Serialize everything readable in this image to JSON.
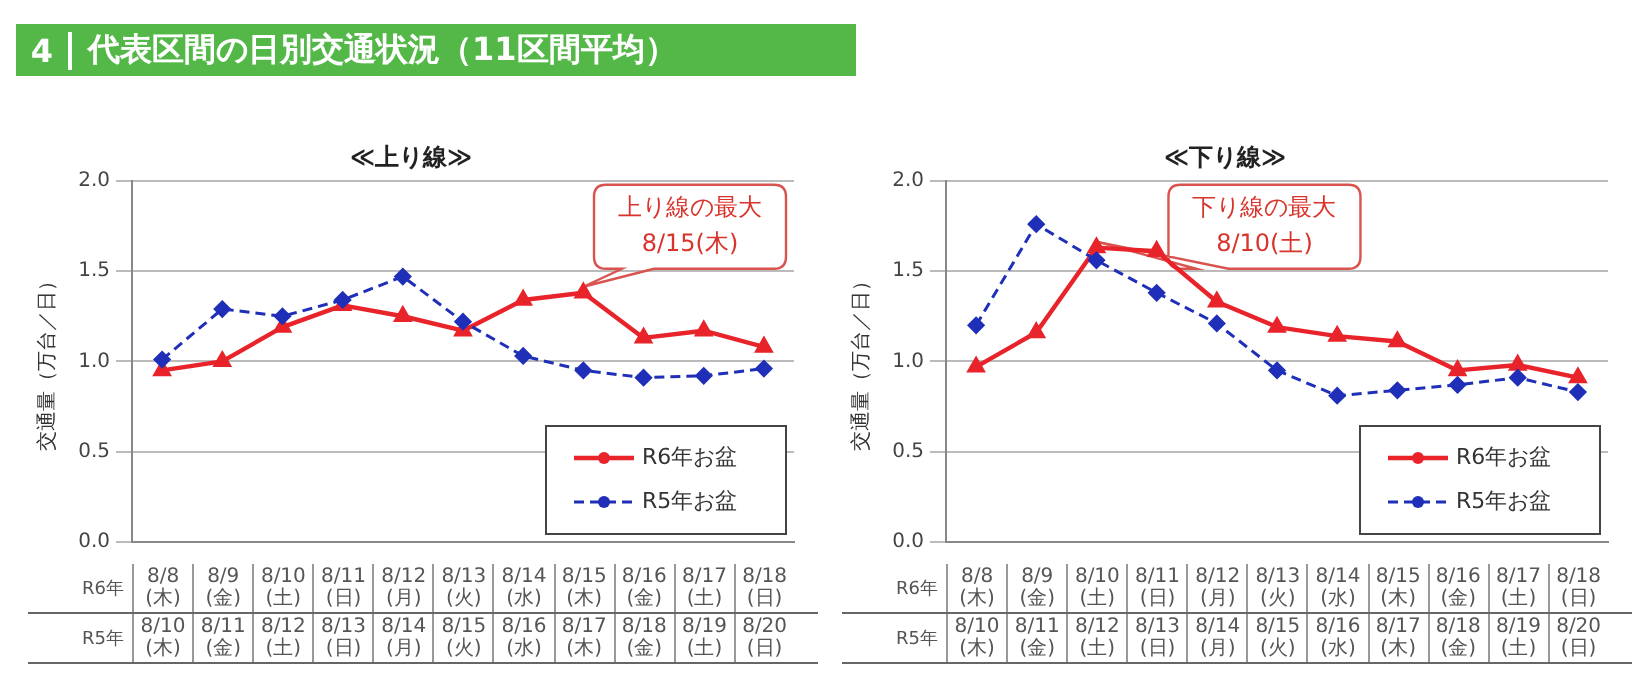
{
  "chart_data": [
    {
      "type": "line",
      "title": "≪上り線≫",
      "ylabel": "交通量（万台／日）",
      "categories": [
        "8/8(木)",
        "8/9(金)",
        "8/10(土)",
        "8/11(日)",
        "8/12(月)",
        "8/13(火)",
        "8/14(水)",
        "8/15(木)",
        "8/16(金)",
        "8/17(土)",
        "8/18(日)"
      ],
      "series": [
        {
          "name": "R6年お盆",
          "color": "#e8232a",
          "marker": "triangle",
          "line_style": "solid",
          "values": [
            0.95,
            1.0,
            1.19,
            1.31,
            1.25,
            1.17,
            1.34,
            1.38,
            1.13,
            1.17,
            1.08
          ]
        },
        {
          "name": "R5年お盆",
          "color": "#1f2fb8",
          "marker": "diamond",
          "line_style": "dashed",
          "values": [
            1.01,
            1.29,
            1.25,
            1.34,
            1.47,
            1.22,
            1.03,
            0.95,
            0.91,
            0.92,
            0.96
          ]
        }
      ],
      "ylim": [
        0,
        2
      ],
      "yticks": [
        {
          "value": 0,
          "label": "0.0"
        },
        {
          "value": 0.5,
          "label": "0.5"
        },
        {
          "value": 1,
          "label": "1.0"
        },
        {
          "value": 1.5,
          "label": "1.5"
        },
        {
          "value": 2,
          "label": "2.0"
        }
      ],
      "grid": "y",
      "legend": "bottom right",
      "annotations": [
        "4",
        "代表区間の日別交通状況（11区間平均）",
        "上り線の最大\n8/15(木)",
        "R6年",
        "R5年",
        "8/10(木)",
        "8/11(金)",
        "8/12(土)",
        "8/13(日)",
        "8/14(月)",
        "8/15(火)",
        "8/16(水)",
        "8/17(木)",
        "8/18(金)",
        "8/19(土)",
        "8/20(日)"
      ]
    },
    {
      "type": "line",
      "title": "≪下り線≫",
      "ylabel": "交通量（万台／日）",
      "categories": [
        "8/8(木)",
        "8/9(金)",
        "8/10(土)",
        "8/11(日)",
        "8/12(月)",
        "8/13(火)",
        "8/14(水)",
        "8/15(木)",
        "8/16(金)",
        "8/17(土)",
        "8/18(日)"
      ],
      "series": [
        {
          "name": "R6年お盆",
          "color": "#e8232a",
          "marker": "triangle",
          "line_style": "solid",
          "values": [
            0.97,
            1.16,
            1.63,
            1.61,
            1.33,
            1.19,
            1.14,
            1.11,
            0.95,
            0.98,
            0.91
          ]
        },
        {
          "name": "R5年お盆",
          "color": "#1f2fb8",
          "marker": "diamond",
          "line_style": "dashed",
          "values": [
            1.2,
            1.76,
            1.56,
            1.38,
            1.21,
            0.95,
            0.81,
            0.84,
            0.87,
            0.91,
            0.83
          ]
        }
      ],
      "ylim": [
        0,
        2
      ],
      "yticks": [
        {
          "value": 0,
          "label": "0.0"
        },
        {
          "value": 0.5,
          "label": "0.5"
        },
        {
          "value": 1,
          "label": "1.0"
        },
        {
          "value": 1.5,
          "label": "1.5"
        },
        {
          "value": 2,
          "label": "2.0"
        }
      ],
      "grid": "y",
      "legend": "bottom right",
      "annotations": [
        "下り線の最大\n8/10(土)",
        "R6年",
        "R5年",
        "8/10(木)",
        "8/11(金)",
        "8/12(土)",
        "8/13(日)",
        "8/14(月)",
        "8/15(火)",
        "8/16(水)",
        "8/17(木)",
        "8/18(金)",
        "8/19(土)",
        "8/20(日)"
      ]
    }
  ]
}
